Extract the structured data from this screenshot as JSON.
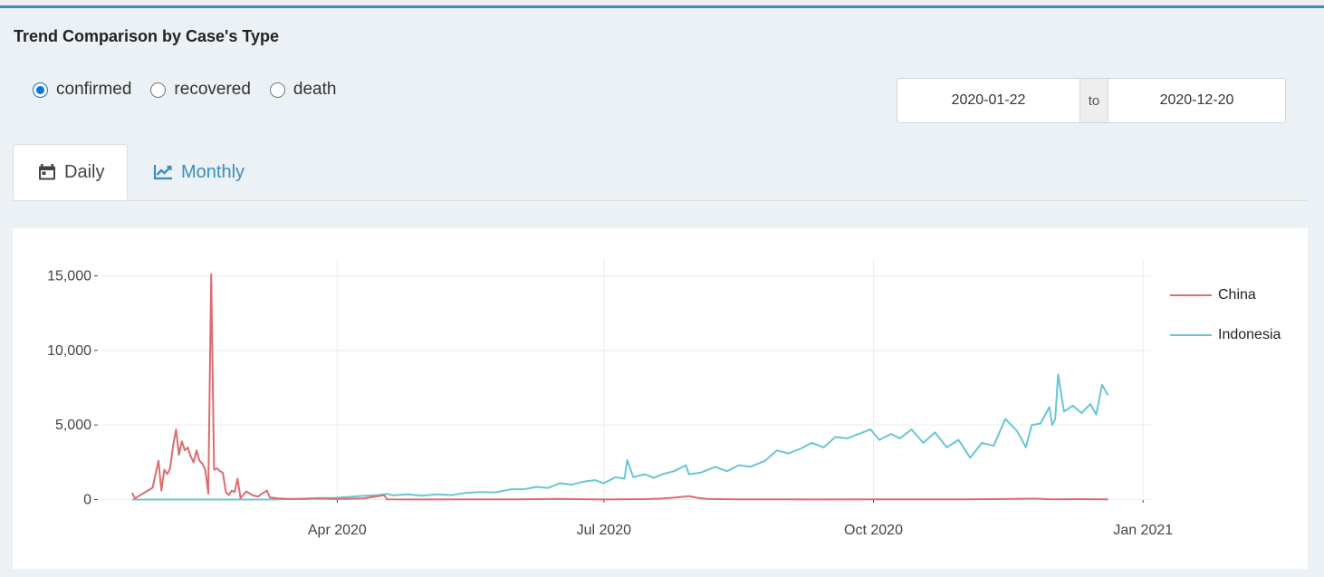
{
  "panel": {
    "title": "Trend Comparison by Case's Type"
  },
  "case_type": {
    "options": [
      {
        "label": "confirmed",
        "selected": true
      },
      {
        "label": "recovered",
        "selected": false
      },
      {
        "label": "death",
        "selected": false
      }
    ]
  },
  "date_range": {
    "start": "2020-01-22",
    "separator": "to",
    "end": "2020-12-20"
  },
  "tabs": [
    {
      "label": "Daily",
      "icon": "calendar-icon",
      "active": true
    },
    {
      "label": "Monthly",
      "icon": "line-chart-icon",
      "active": false
    }
  ],
  "colors": {
    "china": "#dc6c6e",
    "indonesia": "#68c6d3",
    "link": "#3c8dbc",
    "radio_accent": "#0a75d6"
  },
  "chart_data": {
    "type": "line",
    "title": "",
    "xlabel": "",
    "ylabel": "",
    "x_axis": {
      "type": "date",
      "range": [
        "2020-01-10",
        "2020-12-31"
      ],
      "ticks": [
        {
          "date": "2020-04-01",
          "label": "Apr 2020"
        },
        {
          "date": "2020-07-01",
          "label": "Jul 2020"
        },
        {
          "date": "2020-10-01",
          "label": "Oct 2020"
        },
        {
          "date": "2021-01-01",
          "label": "Jan 2021"
        }
      ]
    },
    "y_axis": {
      "range": [
        -1000,
        16000
      ],
      "ticks": [
        {
          "value": 0,
          "label": "0"
        },
        {
          "value": 5000,
          "label": "5,000"
        },
        {
          "value": 10000,
          "label": "10,000"
        },
        {
          "value": 15000,
          "label": "15,000"
        }
      ]
    },
    "grid": true,
    "legend": "right",
    "series": [
      {
        "name": "China",
        "color": "#dc6c6e",
        "points": [
          [
            "2020-01-22",
            450
          ],
          [
            "2020-01-23",
            80
          ],
          [
            "2020-01-29",
            800
          ],
          [
            "2020-01-31",
            2600
          ],
          [
            "2020-02-01",
            600
          ],
          [
            "2020-02-02",
            2000
          ],
          [
            "2020-02-03",
            1700
          ],
          [
            "2020-02-04",
            2100
          ],
          [
            "2020-02-05",
            3600
          ],
          [
            "2020-02-06",
            4700
          ],
          [
            "2020-02-07",
            3000
          ],
          [
            "2020-02-08",
            3900
          ],
          [
            "2020-02-09",
            3300
          ],
          [
            "2020-02-10",
            3500
          ],
          [
            "2020-02-11",
            2900
          ],
          [
            "2020-02-12",
            2500
          ],
          [
            "2020-02-13",
            3300
          ],
          [
            "2020-02-14",
            2600
          ],
          [
            "2020-02-15",
            2400
          ],
          [
            "2020-02-16",
            2000
          ],
          [
            "2020-02-17",
            400
          ],
          [
            "2020-02-18",
            15100
          ],
          [
            "2020-02-19",
            2000
          ],
          [
            "2020-02-20",
            2100
          ],
          [
            "2020-02-21",
            1900
          ],
          [
            "2020-02-22",
            1800
          ],
          [
            "2020-02-23",
            500
          ],
          [
            "2020-02-24",
            300
          ],
          [
            "2020-02-25",
            600
          ],
          [
            "2020-02-26",
            500
          ],
          [
            "2020-02-27",
            1400
          ],
          [
            "2020-02-28",
            100
          ],
          [
            "2020-03-01",
            550
          ],
          [
            "2020-03-03",
            300
          ],
          [
            "2020-03-05",
            200
          ],
          [
            "2020-03-06",
            350
          ],
          [
            "2020-03-08",
            600
          ],
          [
            "2020-03-09",
            150
          ],
          [
            "2020-03-12",
            80
          ],
          [
            "2020-03-15",
            50
          ],
          [
            "2020-03-20",
            40
          ],
          [
            "2020-03-25",
            70
          ],
          [
            "2020-04-01",
            40
          ],
          [
            "2020-04-10",
            80
          ],
          [
            "2020-04-17",
            300
          ],
          [
            "2020-04-18",
            20
          ],
          [
            "2020-05-01",
            10
          ],
          [
            "2020-05-15",
            20
          ],
          [
            "2020-06-01",
            15
          ],
          [
            "2020-06-15",
            50
          ],
          [
            "2020-06-30",
            10
          ],
          [
            "2020-07-15",
            30
          ],
          [
            "2020-07-20",
            60
          ],
          [
            "2020-07-25",
            130
          ],
          [
            "2020-07-30",
            230
          ],
          [
            "2020-08-02",
            120
          ],
          [
            "2020-08-05",
            50
          ],
          [
            "2020-08-15",
            20
          ],
          [
            "2020-09-01",
            15
          ],
          [
            "2020-09-15",
            10
          ],
          [
            "2020-10-01",
            20
          ],
          [
            "2020-10-15",
            20
          ],
          [
            "2020-11-01",
            20
          ],
          [
            "2020-11-15",
            40
          ],
          [
            "2020-11-25",
            60
          ],
          [
            "2020-12-01",
            20
          ],
          [
            "2020-12-10",
            30
          ],
          [
            "2020-12-20",
            20
          ]
        ]
      },
      {
        "name": "Indonesia",
        "color": "#68c6d3",
        "points": [
          [
            "2020-01-22",
            0
          ],
          [
            "2020-03-01",
            0
          ],
          [
            "2020-03-10",
            5
          ],
          [
            "2020-03-15",
            30
          ],
          [
            "2020-03-20",
            60
          ],
          [
            "2020-03-25",
            100
          ],
          [
            "2020-03-31",
            120
          ],
          [
            "2020-04-05",
            180
          ],
          [
            "2020-04-10",
            250
          ],
          [
            "2020-04-15",
            300
          ],
          [
            "2020-04-18",
            380
          ],
          [
            "2020-04-20",
            280
          ],
          [
            "2020-04-25",
            350
          ],
          [
            "2020-04-30",
            260
          ],
          [
            "2020-05-05",
            350
          ],
          [
            "2020-05-10",
            300
          ],
          [
            "2020-05-15",
            450
          ],
          [
            "2020-05-20",
            500
          ],
          [
            "2020-05-25",
            480
          ],
          [
            "2020-05-30",
            680
          ],
          [
            "2020-06-04",
            700
          ],
          [
            "2020-06-08",
            850
          ],
          [
            "2020-06-12",
            780
          ],
          [
            "2020-06-16",
            1100
          ],
          [
            "2020-06-20",
            1000
          ],
          [
            "2020-06-24",
            1200
          ],
          [
            "2020-06-28",
            1300
          ],
          [
            "2020-07-01",
            1100
          ],
          [
            "2020-07-05",
            1500
          ],
          [
            "2020-07-08",
            1400
          ],
          [
            "2020-07-09",
            2650
          ],
          [
            "2020-07-11",
            1500
          ],
          [
            "2020-07-15",
            1700
          ],
          [
            "2020-07-18",
            1450
          ],
          [
            "2020-07-21",
            1700
          ],
          [
            "2020-07-25",
            1900
          ],
          [
            "2020-07-29",
            2300
          ],
          [
            "2020-07-30",
            1700
          ],
          [
            "2020-08-03",
            1800
          ],
          [
            "2020-08-08",
            2200
          ],
          [
            "2020-08-12",
            1900
          ],
          [
            "2020-08-16",
            2300
          ],
          [
            "2020-08-20",
            2200
          ],
          [
            "2020-08-25",
            2600
          ],
          [
            "2020-08-29",
            3300
          ],
          [
            "2020-09-02",
            3100
          ],
          [
            "2020-09-06",
            3400
          ],
          [
            "2020-09-10",
            3800
          ],
          [
            "2020-09-14",
            3500
          ],
          [
            "2020-09-18",
            4200
          ],
          [
            "2020-09-22",
            4100
          ],
          [
            "2020-09-26",
            4400
          ],
          [
            "2020-09-30",
            4700
          ],
          [
            "2020-10-03",
            4000
          ],
          [
            "2020-10-07",
            4400
          ],
          [
            "2020-10-10",
            4100
          ],
          [
            "2020-10-14",
            4700
          ],
          [
            "2020-10-18",
            3800
          ],
          [
            "2020-10-22",
            4500
          ],
          [
            "2020-10-26",
            3500
          ],
          [
            "2020-10-30",
            4000
          ],
          [
            "2020-11-03",
            2800
          ],
          [
            "2020-11-07",
            3800
          ],
          [
            "2020-11-11",
            3600
          ],
          [
            "2020-11-15",
            5400
          ],
          [
            "2020-11-19",
            4600
          ],
          [
            "2020-11-22",
            3500
          ],
          [
            "2020-11-24",
            5000
          ],
          [
            "2020-11-27",
            5100
          ],
          [
            "2020-11-30",
            6200
          ],
          [
            "2020-12-01",
            5000
          ],
          [
            "2020-12-02",
            5400
          ],
          [
            "2020-12-03",
            8400
          ],
          [
            "2020-12-05",
            5900
          ],
          [
            "2020-12-08",
            6300
          ],
          [
            "2020-12-11",
            5800
          ],
          [
            "2020-12-14",
            6400
          ],
          [
            "2020-12-16",
            5700
          ],
          [
            "2020-12-18",
            7700
          ],
          [
            "2020-12-20",
            7000
          ]
        ]
      }
    ]
  }
}
